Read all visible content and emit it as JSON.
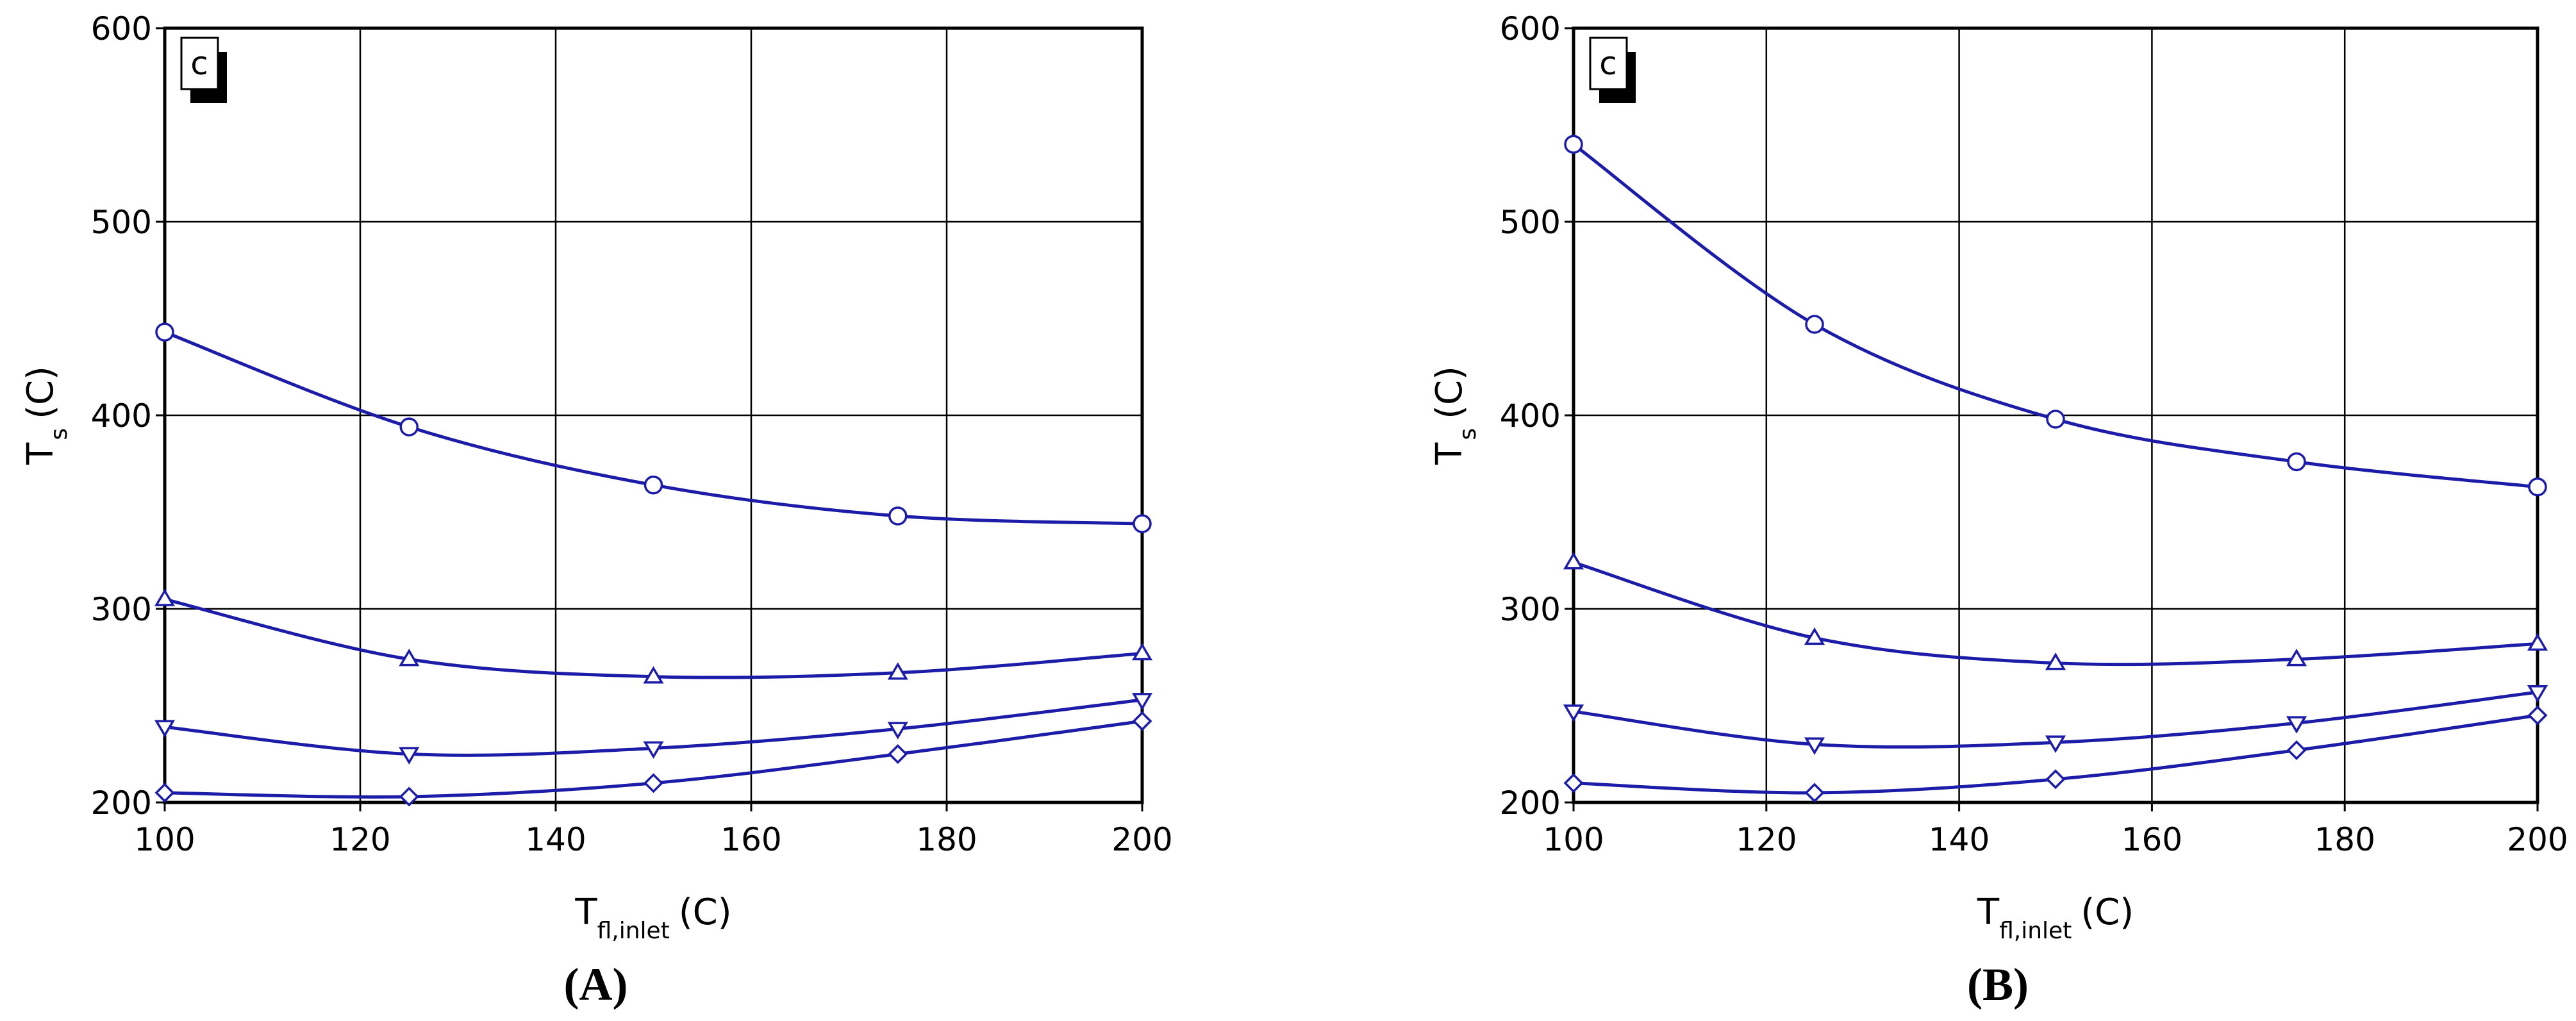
{
  "chart_data": [
    {
      "type": "line",
      "panel": "(A)",
      "annotation": "c",
      "x_label": {
        "text": "T",
        "subscript": "fl,inlet",
        "unit": "(C)"
      },
      "y_label": {
        "text": "T",
        "subscript": "s",
        "unit": "(C)"
      },
      "x": [
        100,
        125,
        150,
        175,
        200
      ],
      "series": [
        {
          "color": "#1c1ca8",
          "marker": "circle",
          "values": [
            443,
            394,
            364,
            348,
            344
          ]
        },
        {
          "color": "#1c1ca8",
          "marker": "triangle-up",
          "values": [
            305,
            274,
            265,
            267,
            277
          ]
        },
        {
          "color": "#1c1ca8",
          "marker": "triangle-down",
          "values": [
            239,
            225,
            228,
            238,
            253
          ]
        },
        {
          "color": "#1c1ca8",
          "marker": "diamond",
          "values": [
            205,
            203,
            210,
            225,
            242
          ]
        }
      ],
      "xlim": [
        100,
        200
      ],
      "xticks": [
        100,
        120,
        140,
        160,
        180,
        200
      ],
      "ylim": [
        200,
        600
      ],
      "yticks": [
        200,
        300,
        400,
        500,
        600
      ],
      "grid": true
    },
    {
      "type": "line",
      "panel": "(B)",
      "annotation": "c",
      "x_label": {
        "text": "T",
        "subscript": "fl,inlet",
        "unit": "(C)"
      },
      "y_label": {
        "text": "T",
        "subscript": "s",
        "unit": "(C)"
      },
      "x": [
        100,
        125,
        150,
        175,
        200
      ],
      "series": [
        {
          "color": "#1c1ca8",
          "marker": "circle",
          "values": [
            540,
            447,
            398,
            376,
            363
          ]
        },
        {
          "color": "#1c1ca8",
          "marker": "triangle-up",
          "values": [
            324,
            285,
            272,
            274,
            282
          ]
        },
        {
          "color": "#1c1ca8",
          "marker": "triangle-down",
          "values": [
            247,
            230,
            231,
            241,
            257
          ]
        },
        {
          "color": "#1c1ca8",
          "marker": "diamond",
          "values": [
            210,
            205,
            212,
            227,
            245
          ]
        }
      ],
      "xlim": [
        100,
        200
      ],
      "xticks": [
        100,
        120,
        140,
        160,
        180,
        200
      ],
      "ylim": [
        200,
        600
      ],
      "yticks": [
        200,
        300,
        400,
        500,
        600
      ],
      "grid": true
    }
  ]
}
